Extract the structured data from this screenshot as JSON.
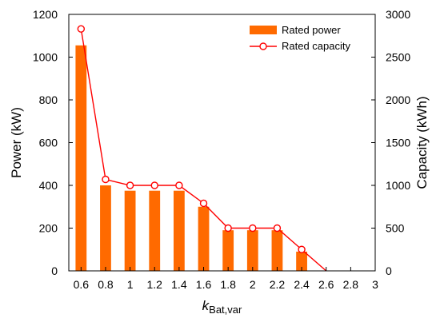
{
  "chart_data": {
    "type": "bar",
    "x_categories": [
      "0.6",
      "0.8",
      "1",
      "1.2",
      "1.4",
      "1.6",
      "1.8",
      "2",
      "2.2",
      "2.4",
      "2.6",
      "2.8",
      "3"
    ],
    "series": [
      {
        "name": "Rated power",
        "type": "bar",
        "axis": "left",
        "color": "#ff6a00",
        "values": [
          1055,
          400,
          375,
          375,
          375,
          300,
          190,
          190,
          190,
          90,
          0,
          0,
          0
        ]
      },
      {
        "name": "Rated capacity",
        "type": "line",
        "marker": "open-circle",
        "axis": "right",
        "color": "#ff0000",
        "values": [
          2830,
          1070,
          1000,
          1000,
          1000,
          790,
          500,
          500,
          500,
          250,
          0,
          0,
          0
        ]
      }
    ],
    "x_label_main": "k",
    "x_label_sub": "Bat,var",
    "y_left_label": "Power (kW)",
    "y_left_range": [
      0,
      1200
    ],
    "y_left_ticks": [
      "0",
      "200",
      "400",
      "600",
      "800",
      "1000",
      "1200"
    ],
    "y_right_label": "Capacity (kWh)",
    "y_right_range": [
      0,
      3000
    ],
    "y_right_ticks": [
      "0",
      "500",
      "1000",
      "1500",
      "2000",
      "2500",
      "3000"
    ],
    "legend_position": "top-right",
    "grid": false
  }
}
